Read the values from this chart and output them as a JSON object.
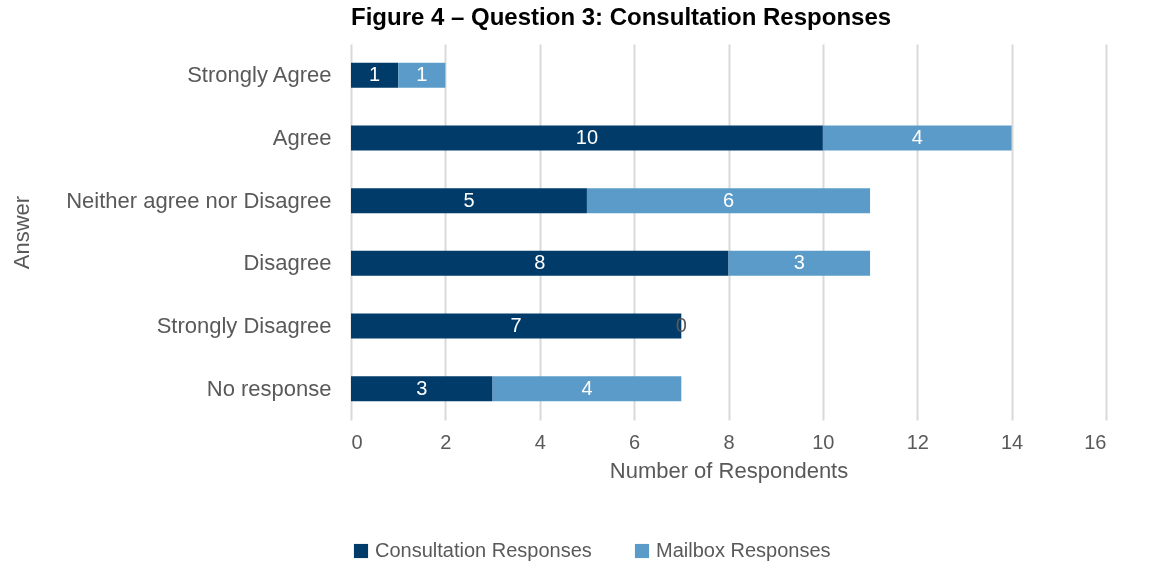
{
  "chart_data": {
    "type": "bar",
    "orientation": "horizontal",
    "stacked": true,
    "title": "Figure 4 – Question 3: Consultation Responses",
    "xlabel": "Number of Respondents",
    "ylabel": "Answer",
    "categories": [
      "Strongly Agree",
      "Agree",
      "Neither agree nor Disagree",
      "Disagree",
      "Strongly Disagree",
      "No response"
    ],
    "series": [
      {
        "name": "Consultation Responses",
        "color": "#003b6a",
        "values": [
          1,
          10,
          5,
          8,
          7,
          3
        ]
      },
      {
        "name": "Mailbox Responses",
        "color": "#5b9bc9",
        "values": [
          1,
          4,
          6,
          3,
          0,
          4
        ]
      }
    ],
    "xlim": [
      0,
      16
    ],
    "xticks": [
      0,
      2,
      4,
      6,
      8,
      10,
      12,
      14,
      16
    ],
    "grid": "x",
    "legend": "bottom",
    "data_labels": true
  }
}
